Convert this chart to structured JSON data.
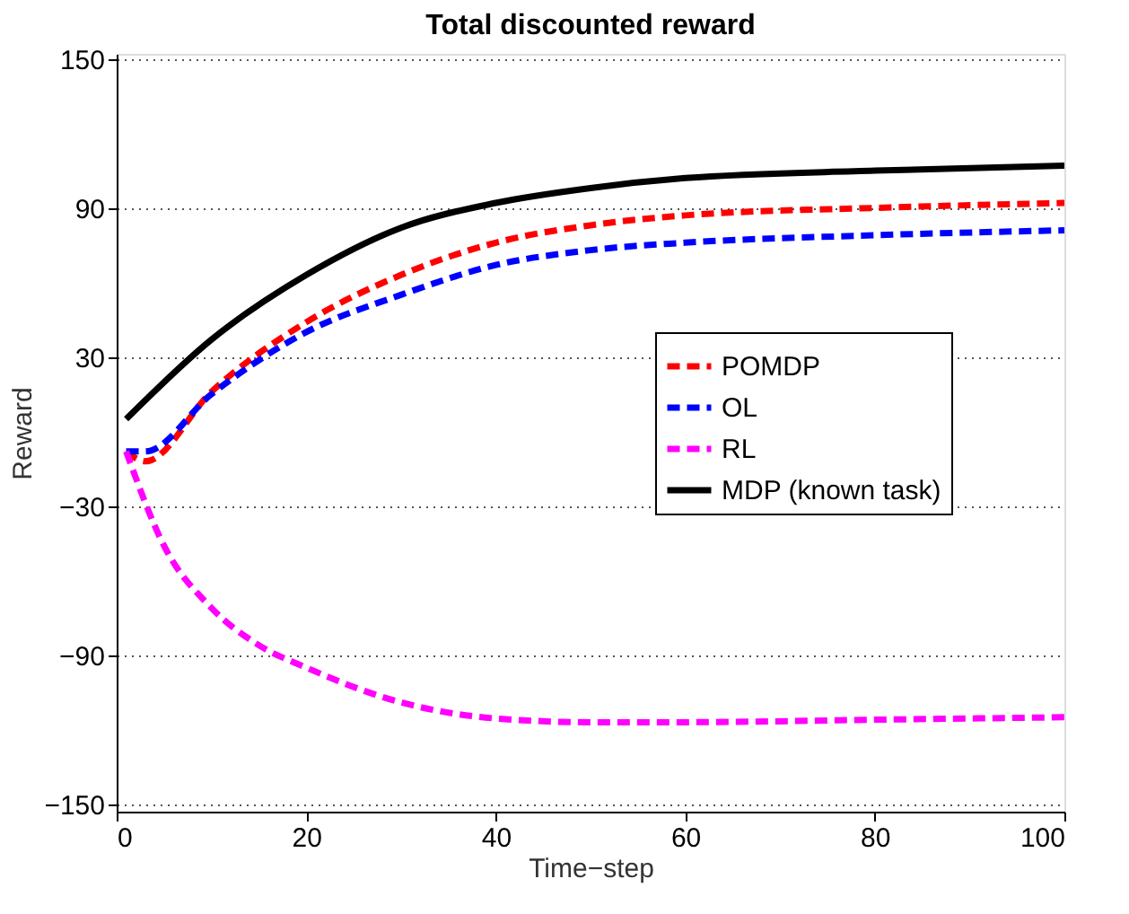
{
  "chart_data": {
    "type": "line",
    "title": "Total discounted reward",
    "xlabel": "Time−step",
    "ylabel": "Reward",
    "xlim": [
      0,
      100
    ],
    "xticks": [
      0,
      20,
      40,
      60,
      80,
      100
    ],
    "ylim": [
      -153,
      152
    ],
    "yticks": [
      {
        "value": -150,
        "label": "−150"
      },
      {
        "value": -90,
        "label": "−90"
      },
      {
        "value": -30,
        "label": "−30"
      },
      30,
      90,
      150
    ],
    "grid": "y",
    "legend": "right",
    "marker": "none",
    "series": [
      {
        "name": "POMDP",
        "color": "#ff0000",
        "line_style": "dashed",
        "x": [
          1,
          3,
          10,
          20,
          30,
          40,
          50,
          60,
          80,
          100
        ],
        "values": [
          -8,
          -12,
          16,
          44,
          63,
          76,
          83,
          87,
          90,
          92
        ]
      },
      {
        "name": "OL",
        "color": "#0000ff",
        "line_style": "dashed",
        "x": [
          1,
          3,
          10,
          20,
          30,
          40,
          50,
          60,
          80,
          100
        ],
        "values": [
          -8,
          -8,
          15,
          40,
          55,
          67,
          73,
          76,
          79,
          81
        ]
      },
      {
        "name": "RL",
        "color": "#ff00ff",
        "line_style": "dashed",
        "x": [
          1,
          5,
          10,
          15,
          20,
          30,
          40,
          50,
          60,
          80,
          100
        ],
        "values": [
          -8,
          -46,
          -71,
          -86,
          -95,
          -109,
          -115.5,
          -117,
          -117,
          -116,
          -115
        ]
      },
      {
        "name": "MDP (known task)",
        "color": "#000000",
        "line_style": "solid",
        "x": [
          1,
          10,
          20,
          30,
          40,
          50,
          60,
          80,
          100
        ],
        "values": [
          5,
          37,
          63,
          82,
          92,
          98,
          102,
          105,
          107
        ]
      }
    ]
  }
}
